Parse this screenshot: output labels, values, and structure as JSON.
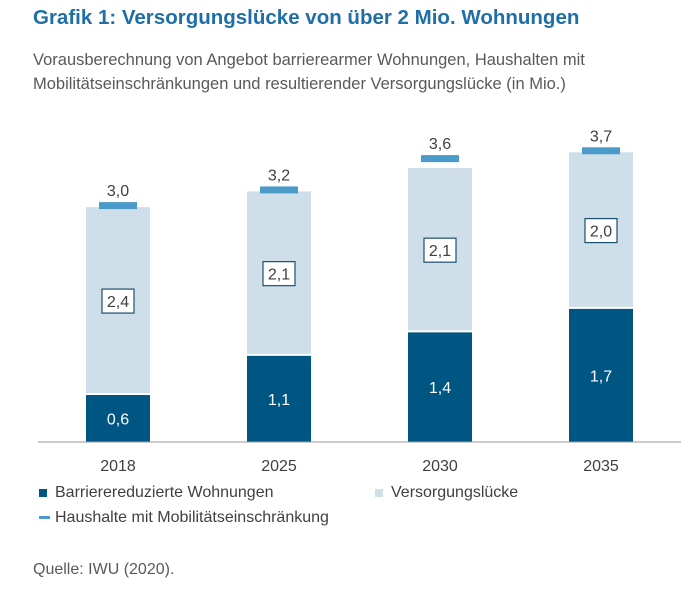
{
  "title": "Grafik 1: Versorgungslücke von über 2 Mio. Wohnungen",
  "subtitle": "Vorausberechnung von Angebot barrierearmer Wohnungen, Haushalten mit Mobilitätseinschränkungen und resultierender Versorgungslücke (in Mio.)",
  "source": "Quelle: IWU (2020).",
  "colors": {
    "dark": "#005683",
    "light": "#cfdfe9",
    "marker": "#4a9bc9",
    "text": "#404040"
  },
  "legend": {
    "dark_label": "Barrierereduzierte Wohnungen",
    "light_label": "Versorgungslücke",
    "marker_label": "Haushalte mit Mobilitätseinschränkung"
  },
  "chart_data": {
    "type": "bar",
    "stacked": true,
    "title": "Grafik 1: Versorgungslücke von über 2 Mio. Wohnungen",
    "categories": [
      "2018",
      "2025",
      "2030",
      "2035"
    ],
    "series": [
      {
        "name": "Barrierereduzierte Wohnungen",
        "values": [
          0.6,
          1.1,
          1.4,
          1.7
        ],
        "labels": [
          "0,6",
          "1,1",
          "1,4",
          "1,7"
        ]
      },
      {
        "name": "Versorgungslücke",
        "values": [
          2.4,
          2.1,
          2.1,
          2.0
        ],
        "labels": [
          "2,4",
          "2,1",
          "2,1",
          "2,0"
        ]
      },
      {
        "name": "Haushalte mit Mobilitätseinschränkung",
        "kind": "marker",
        "values": [
          3.0,
          3.2,
          3.6,
          3.7
        ],
        "labels": [
          "3,0",
          "3,2",
          "3,6",
          "3,7"
        ]
      }
    ],
    "ylim": [
      0,
      4
    ],
    "xlabel": "",
    "ylabel": "",
    "legend_position": "bottom-left"
  }
}
